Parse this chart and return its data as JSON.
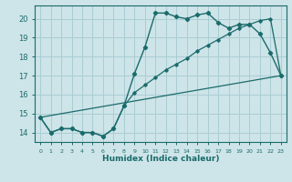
{
  "xlabel": "Humidex (Indice chaleur)",
  "bg_color": "#cde4e8",
  "grid_color": "#aacdd4",
  "line_color": "#1a6b6b",
  "xlim": [
    -0.5,
    23.5
  ],
  "ylim": [
    13.5,
    20.7
  ],
  "yticks": [
    14,
    15,
    16,
    17,
    18,
    19,
    20
  ],
  "xticks": [
    0,
    1,
    2,
    3,
    4,
    5,
    6,
    7,
    8,
    9,
    10,
    11,
    12,
    13,
    14,
    15,
    16,
    17,
    18,
    19,
    20,
    21,
    22,
    23
  ],
  "series1_x": [
    0,
    1,
    2,
    3,
    4,
    5,
    6,
    7,
    8,
    9,
    10,
    11,
    12,
    13,
    14,
    15,
    16,
    17,
    18,
    19,
    20,
    21,
    22,
    23
  ],
  "series1_y": [
    14.8,
    14.0,
    14.2,
    14.2,
    14.0,
    14.0,
    13.8,
    14.2,
    15.4,
    17.1,
    18.5,
    20.3,
    20.3,
    20.1,
    20.0,
    20.2,
    20.3,
    19.8,
    19.5,
    19.7,
    19.7,
    19.2,
    18.2,
    17.0
  ],
  "series2_x": [
    0,
    23
  ],
  "series2_y": [
    14.8,
    17.0
  ],
  "series3_x": [
    0,
    1,
    2,
    3,
    4,
    5,
    6,
    7,
    8,
    9,
    10,
    11,
    12,
    13,
    14,
    15,
    16,
    17,
    18,
    19,
    20,
    21,
    22,
    23
  ],
  "series3_y": [
    14.8,
    14.0,
    14.2,
    14.2,
    14.0,
    14.0,
    13.8,
    14.2,
    15.4,
    16.1,
    16.5,
    16.9,
    17.3,
    17.6,
    17.9,
    18.3,
    18.6,
    18.9,
    19.2,
    19.5,
    19.7,
    19.9,
    20.0,
    17.0
  ]
}
